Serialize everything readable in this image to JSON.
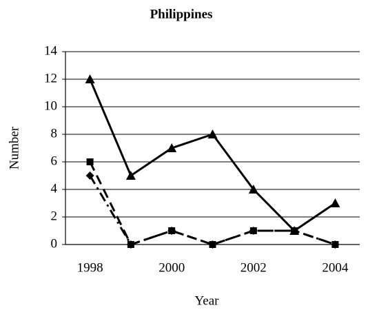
{
  "chart_data": {
    "type": "line",
    "title": "Philippines",
    "xlabel": "Year",
    "ylabel": "Number",
    "x": [
      1998,
      1999,
      2000,
      2001,
      2002,
      2003,
      2004
    ],
    "series": [
      {
        "color": "#000000",
        "marker": "triangle",
        "dash": "solid",
        "values": [
          12,
          5,
          7,
          8,
          4,
          1,
          3
        ]
      },
      {
        "color": "#000000",
        "marker": "square",
        "dash": "dashed",
        "values": [
          6,
          0,
          1,
          0,
          1,
          1,
          0
        ]
      },
      {
        "color": "#000000",
        "marker": "diamond",
        "dash": "dashdot",
        "values": [
          5,
          0,
          1,
          0,
          1,
          1,
          0
        ]
      }
    ],
    "xlim": [
      1997.4,
      2004.6
    ],
    "xticks": [
      1998,
      2000,
      2002,
      2004
    ],
    "ylim": [
      0,
      14
    ],
    "yticks": [
      0,
      2,
      4,
      6,
      8,
      10,
      12,
      14
    ],
    "grid": true
  }
}
